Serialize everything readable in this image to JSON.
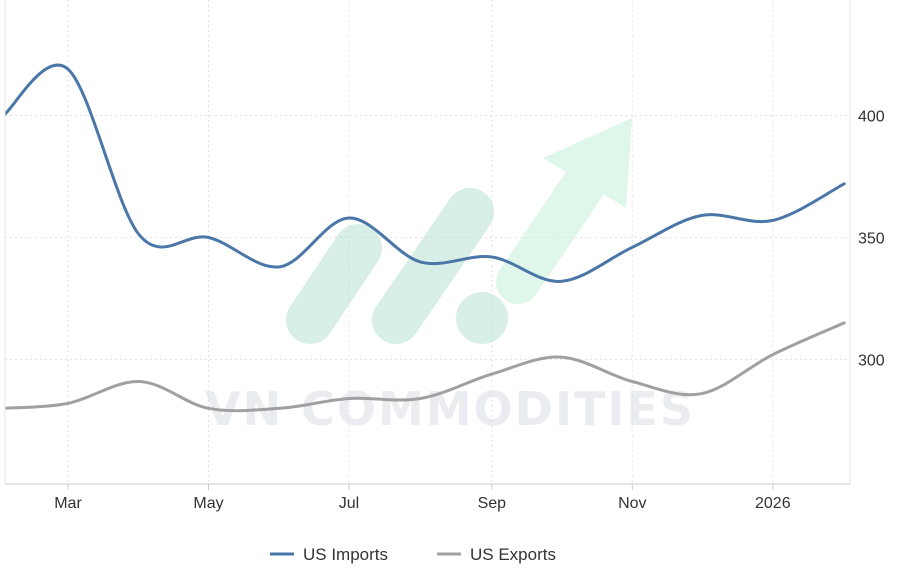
{
  "watermark": {
    "text": "VN COMMODITIES"
  },
  "chart_data": {
    "type": "line",
    "x": [
      "2025-02-01",
      "2025-03-01",
      "2025-04-01",
      "2025-05-01",
      "2025-06-01",
      "2025-07-01",
      "2025-08-01",
      "2025-09-01",
      "2025-10-01",
      "2025-11-01",
      "2025-12-01",
      "2026-01-01",
      "2026-02-01"
    ],
    "x_tick_labels": [
      "Mar",
      "May",
      "Jul",
      "Sep",
      "Nov",
      "2026"
    ],
    "y_tick_labels": [
      "300",
      "350",
      "400"
    ],
    "ylim": [
      250,
      430
    ],
    "grid": true,
    "legend_position": "bottom-center",
    "series": [
      {
        "name": "US Imports",
        "color": "#4a76a8",
        "values": [
          400,
          419,
          351,
          350,
          338,
          358,
          340,
          342,
          332,
          346,
          359,
          357,
          372
        ]
      },
      {
        "name": "US Exports",
        "color": "#a0a0a0",
        "values": [
          280,
          282,
          291,
          280,
          280,
          284,
          284,
          294,
          301,
          291,
          286,
          302,
          315
        ]
      }
    ]
  }
}
